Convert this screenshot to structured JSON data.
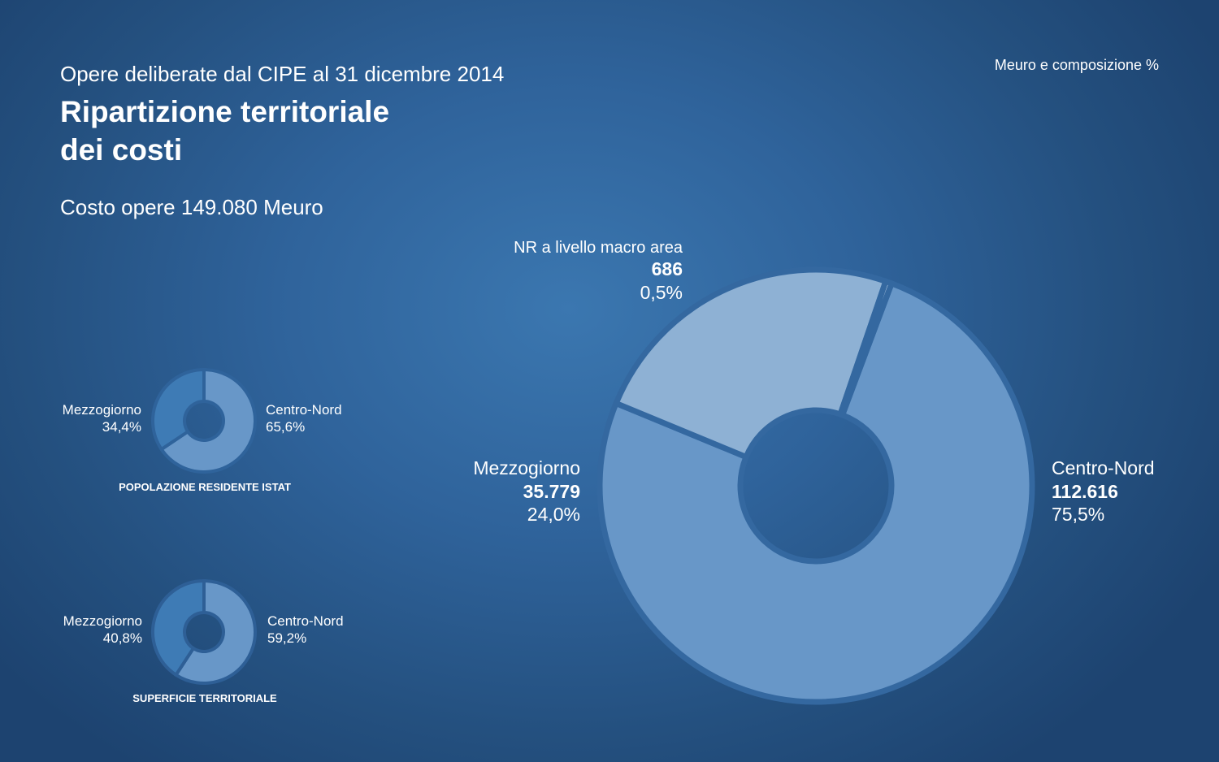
{
  "header": {
    "subtitle": "Opere deliberate dal CIPE al 31 dicembre 2014",
    "title_line1": "Ripartizione territoriale",
    "title_line2": "dei costi",
    "total": "Costo opere 149.080 Meuro",
    "unit": "Meuro e composizione %"
  },
  "chart_data": [
    {
      "type": "pie",
      "subtype": "donut",
      "title": "Ripartizione territoriale dei costi",
      "series": [
        {
          "name": "Centro-Nord",
          "value": 112616,
          "value_label": "112.616",
          "percent": 75.5,
          "percent_label": "75,5%",
          "color": "#6897c8"
        },
        {
          "name": "Mezzogiorno",
          "value": 35779,
          "value_label": "35.779",
          "percent": 24.0,
          "percent_label": "24,0%",
          "color": "#8eb1d4"
        },
        {
          "name": "NR a livello macro area",
          "value": 686,
          "value_label": "686",
          "percent": 0.5,
          "percent_label": "0,5%",
          "color": "#bcd1e7"
        }
      ]
    },
    {
      "type": "pie",
      "subtype": "donut",
      "title": "POPOLAZIONE RESIDENTE ISTAT",
      "series": [
        {
          "name": "Centro-Nord",
          "percent": 65.6,
          "percent_label": "65,6%",
          "color": "#6897c8"
        },
        {
          "name": "Mezzogiorno",
          "percent": 34.4,
          "percent_label": "34,4%",
          "color": "#3e7bb5"
        }
      ]
    },
    {
      "type": "pie",
      "subtype": "donut",
      "title": "SUPERFICIE TERRITORIALE",
      "series": [
        {
          "name": "Centro-Nord",
          "percent": 59.2,
          "percent_label": "59,2%",
          "color": "#6897c8"
        },
        {
          "name": "Mezzogiorno",
          "percent": 40.8,
          "percent_label": "40,8%",
          "color": "#3e7bb5"
        }
      ]
    }
  ]
}
